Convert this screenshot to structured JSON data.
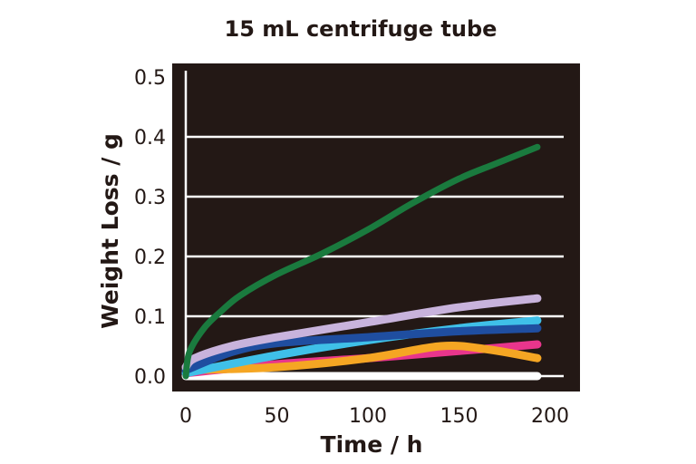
{
  "chart_data": {
    "type": "line",
    "title": "15 mL centrifuge tube",
    "xlabel": "Time / h",
    "ylabel": "Weight Loss / g",
    "xlim": [
      0,
      200
    ],
    "ylim": [
      0,
      0.5
    ],
    "xticks": [
      "0",
      "50",
      "100",
      "150",
      "200"
    ],
    "yticks": [
      "0.0",
      "0.1",
      "0.2",
      "0.3",
      "0.4",
      "0.5"
    ],
    "grid": "horizontal",
    "background": "#231815",
    "series": [
      {
        "color": "#ffffff",
        "x": [
          0,
          193
        ],
        "y": [
          0,
          0
        ]
      },
      {
        "color": "#e8358c",
        "x": [
          0,
          50,
          100,
          150,
          193
        ],
        "y": [
          0.005,
          0.02,
          0.03,
          0.042,
          0.053
        ]
      },
      {
        "color": "#f5a623",
        "x": [
          0,
          50,
          100,
          140,
          165,
          193
        ],
        "y": [
          0.01,
          0.015,
          0.03,
          0.05,
          0.045,
          0.03
        ]
      },
      {
        "color": "#3fc0e8",
        "x": [
          0,
          50,
          100,
          150,
          193
        ],
        "y": [
          0.005,
          0.035,
          0.06,
          0.08,
          0.093
        ]
      },
      {
        "color": "#1f4ea0",
        "x": [
          0,
          25,
          50,
          100,
          150,
          193
        ],
        "y": [
          0.01,
          0.04,
          0.055,
          0.065,
          0.075,
          0.08
        ]
      },
      {
        "color": "#c8b3dc",
        "x": [
          0,
          5,
          25,
          50,
          100,
          150,
          193
        ],
        "y": [
          0.015,
          0.03,
          0.05,
          0.065,
          0.09,
          0.115,
          0.13
        ]
      },
      {
        "color": "#1a7a3e",
        "x": [
          0,
          2,
          10,
          20,
          30,
          50,
          75,
          100,
          125,
          150,
          170,
          193
        ],
        "y": [
          0.0,
          0.04,
          0.08,
          0.11,
          0.135,
          0.17,
          0.205,
          0.245,
          0.29,
          0.33,
          0.355,
          0.383
        ]
      }
    ]
  }
}
